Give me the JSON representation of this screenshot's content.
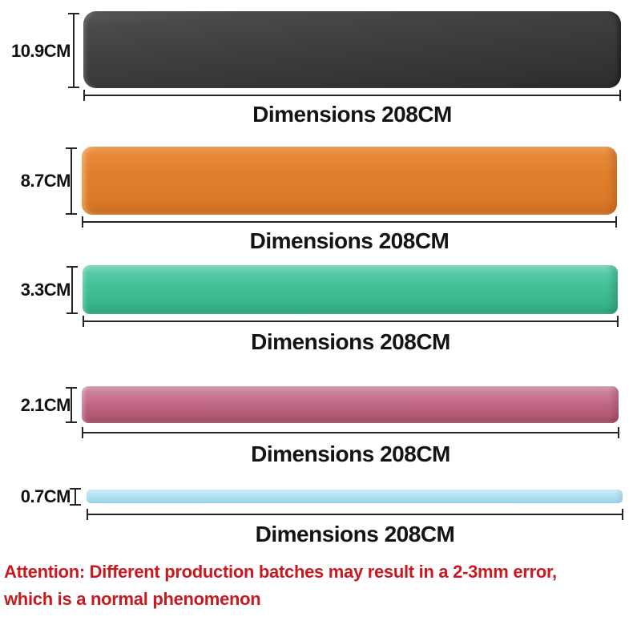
{
  "bands": [
    {
      "id": "black",
      "color": "#3e3e40",
      "width_cm": 10.9,
      "length_cm": 208,
      "height_label": "10.9CM",
      "length_label": "Dimensions 208CM"
    },
    {
      "id": "orange",
      "color": "#e07f2c",
      "width_cm": 8.7,
      "length_cm": 208,
      "height_label": "8.7CM",
      "length_label": "Dimensions 208CM"
    },
    {
      "id": "green",
      "color": "#43bf97",
      "width_cm": 3.3,
      "length_cm": 208,
      "height_label": "3.3CM",
      "length_label": "Dimensions 208CM"
    },
    {
      "id": "pink",
      "color": "#c06685",
      "width_cm": 2.1,
      "length_cm": 208,
      "height_label": "2.1CM",
      "length_label": "Dimensions 208CM"
    },
    {
      "id": "blue",
      "color": "#abddf1",
      "width_cm": 0.7,
      "length_cm": 208,
      "height_label": "0.7CM",
      "length_label": "Dimensions 208CM"
    }
  ],
  "attention": {
    "line1": "Attention: Different production batches may result in a 2-3mm error,",
    "line2": "which is a normal phenomenon",
    "color": "#c8191f"
  }
}
